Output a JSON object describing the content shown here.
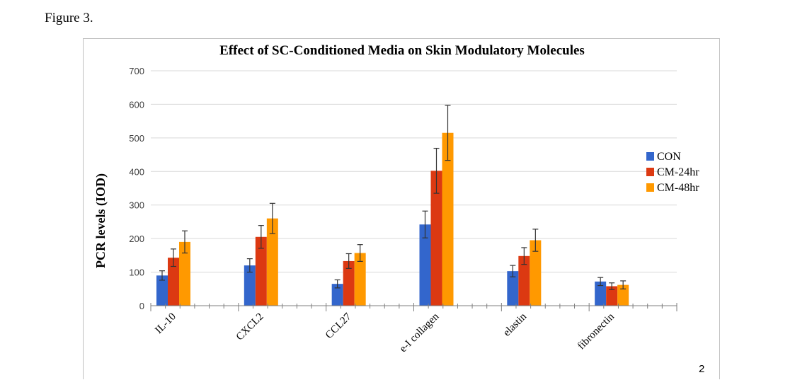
{
  "caption": "Figure 3.",
  "page_number": "2",
  "colors": {
    "CON": "#3366cc",
    "CM-24hr": "#dc3912",
    "CM-48hr": "#ff9900"
  },
  "chart_data": {
    "type": "bar",
    "title": "Effect of SC-Conditioned Media on Skin Modulatory Molecules",
    "ylabel": "PCR levels (IOD)",
    "xlabel": "",
    "ylim": [
      0,
      700
    ],
    "yticks": [
      0,
      100,
      200,
      300,
      400,
      500,
      600,
      700
    ],
    "grid": true,
    "legend_position": "right",
    "categories": [
      "IL-10",
      "CXCL2",
      "CCL27",
      "e-I collagen",
      "elastin",
      "fibronectin"
    ],
    "series": [
      {
        "name": "CON",
        "values": [
          90,
          120,
          65,
          242,
          103,
          72
        ],
        "errors": [
          14,
          20,
          12,
          40,
          17,
          12
        ]
      },
      {
        "name": "CM-24hr",
        "values": [
          143,
          205,
          133,
          402,
          148,
          58
        ],
        "errors": [
          26,
          34,
          22,
          67,
          25,
          10
        ]
      },
      {
        "name": "CM-48hr",
        "values": [
          190,
          260,
          157,
          515,
          195,
          62
        ],
        "errors": [
          33,
          45,
          25,
          82,
          33,
          12
        ]
      }
    ]
  }
}
